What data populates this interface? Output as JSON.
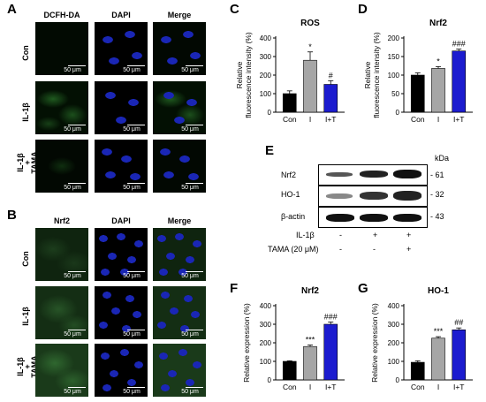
{
  "panel_letters": [
    "A",
    "B",
    "C",
    "D",
    "E",
    "F",
    "G"
  ],
  "panel_A": {
    "columns": [
      "DCFH-DA",
      "DAPI",
      "Merge"
    ],
    "rows": [
      "Con",
      "IL-1β",
      "IL-1β\n+\nTAMA"
    ],
    "scale_bar": "50 μm"
  },
  "panel_B": {
    "columns": [
      "Nrf2",
      "DAPI",
      "Merge"
    ],
    "rows": [
      "Con",
      "IL-1β",
      "IL-1β\n+\nTAMA"
    ],
    "scale_bar": "50 μm"
  },
  "panel_E": {
    "kda_label": "kDa",
    "bands": [
      {
        "name": "Nrf2",
        "kda": "- 61"
      },
      {
        "name": "HO-1",
        "kda": "- 32"
      },
      {
        "name": "β-actin",
        "kda": "- 43"
      }
    ],
    "treatments": [
      {
        "label": "IL-1β",
        "marks": [
          "-",
          "+",
          "+"
        ]
      },
      {
        "label": "TAMA (20 μM)",
        "marks": [
          "-",
          "-",
          "+"
        ]
      }
    ]
  },
  "chart_data": [
    {
      "panel": "C",
      "type": "bar",
      "title": "ROS",
      "ylabel": "Relative fluorescence intensity (%)",
      "categories": [
        "Con",
        "I",
        "I+T"
      ],
      "values": [
        100,
        280,
        150
      ],
      "errors": [
        15,
        45,
        20
      ],
      "ylim": [
        0,
        400
      ],
      "yticks": [
        0,
        100,
        200,
        300,
        400
      ],
      "annotations": [
        "",
        "*",
        "#"
      ],
      "colors": [
        "#000000",
        "#a6a6a6",
        "#1c1ccf"
      ]
    },
    {
      "panel": "D",
      "type": "bar",
      "title": "Nrf2",
      "ylabel": "Relative fluorescence intensity (%)",
      "categories": [
        "Con",
        "I",
        "I+T"
      ],
      "values": [
        100,
        118,
        165
      ],
      "errors": [
        6,
        5,
        5
      ],
      "ylim": [
        0,
        200
      ],
      "yticks": [
        0,
        50,
        100,
        150,
        200
      ],
      "annotations": [
        "",
        "*",
        "###"
      ],
      "colors": [
        "#000000",
        "#a6a6a6",
        "#1c1ccf"
      ]
    },
    {
      "panel": "F",
      "type": "bar",
      "title": "Nrf2",
      "ylabel": "Relative expression (%)",
      "categories": [
        "Con",
        "I",
        "I+T"
      ],
      "values": [
        100,
        180,
        300
      ],
      "errors": [
        3,
        8,
        12
      ],
      "ylim": [
        0,
        400
      ],
      "yticks": [
        0,
        100,
        200,
        300,
        400
      ],
      "annotations": [
        "",
        "***",
        "###"
      ],
      "colors": [
        "#000000",
        "#a6a6a6",
        "#1c1ccf"
      ]
    },
    {
      "panel": "G",
      "type": "bar",
      "title": "HO-1",
      "ylabel": "Relative expression (%)",
      "categories": [
        "Con",
        "I",
        "I+T"
      ],
      "values": [
        95,
        225,
        270
      ],
      "errors": [
        8,
        8,
        10
      ],
      "ylim": [
        0,
        400
      ],
      "yticks": [
        0,
        100,
        200,
        300,
        400
      ],
      "annotations": [
        "",
        "***",
        "##"
      ],
      "colors": [
        "#000000",
        "#a6a6a6",
        "#1c1ccf"
      ]
    }
  ]
}
